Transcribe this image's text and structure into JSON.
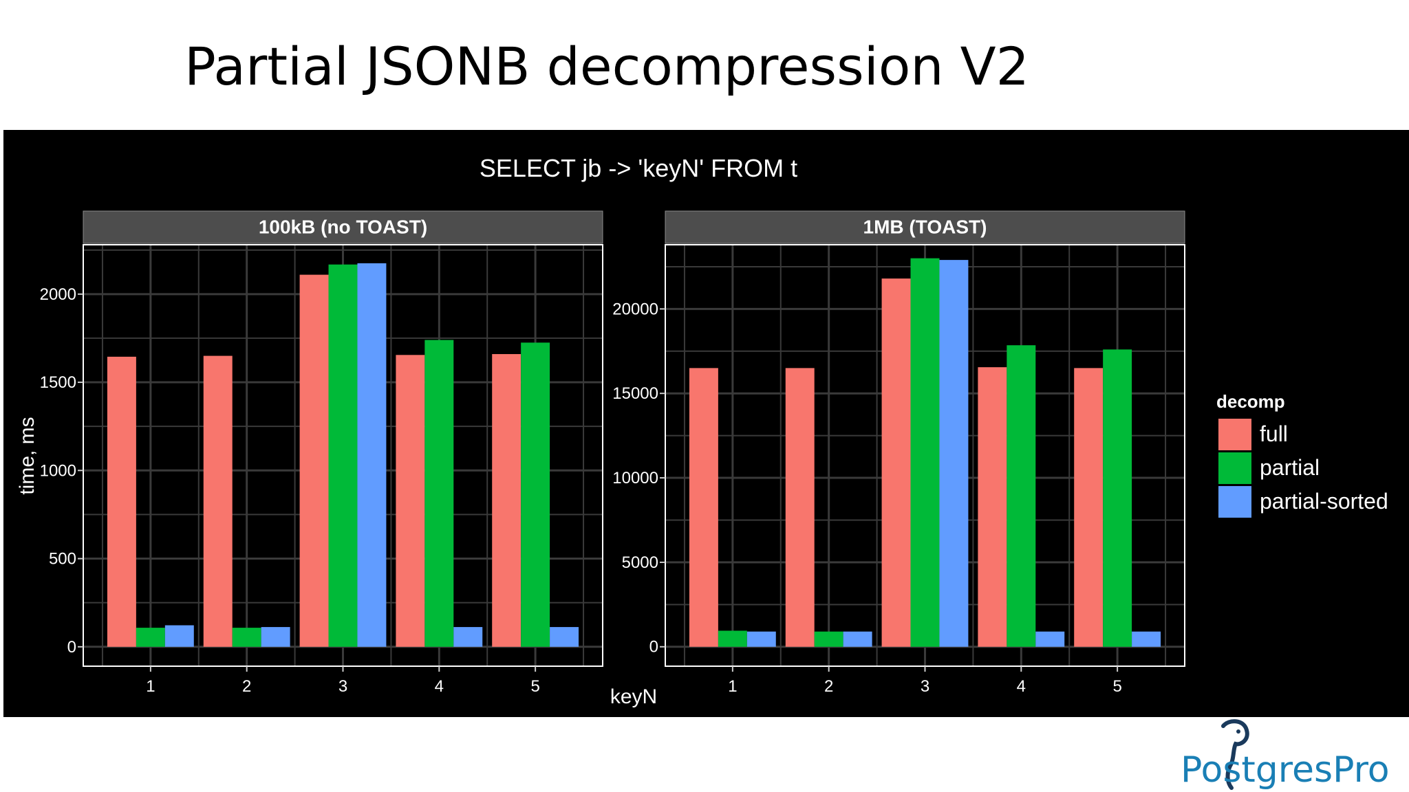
{
  "slide": {
    "title": "Partial JSONB decompression V2"
  },
  "logo": {
    "text": "PostgresPro"
  },
  "colors": {
    "full": "#F8766D",
    "partial": "#00BA38",
    "partial-sorted": "#619CFF",
    "strip": "#4d4d4d",
    "grid": "#3a3a3a"
  },
  "chart_data": {
    "type": "bar",
    "title": "SELECT jb -> 'keyN' FROM t",
    "xlabel": "keyN",
    "ylabel": "time, ms",
    "grid": true,
    "legend": {
      "title": "decomp",
      "position": "right",
      "entries": [
        "full",
        "partial",
        "partial-sorted"
      ]
    },
    "categories": [
      "1",
      "2",
      "3",
      "4",
      "5"
    ],
    "panels": [
      {
        "title": "100kB (no TOAST)",
        "ylim": [
          -110,
          2280
        ],
        "yticks": [
          0,
          500,
          1000,
          1500,
          2000
        ],
        "series": [
          {
            "name": "full",
            "values": [
              1645,
              1650,
              2110,
              1655,
              1660
            ]
          },
          {
            "name": "partial",
            "values": [
              108,
              108,
              2168,
              1740,
              1725
            ]
          },
          {
            "name": "partial-sorted",
            "values": [
              122,
              112,
              2175,
              112,
              112
            ]
          }
        ]
      },
      {
        "title": "1MB (TOAST)",
        "ylim": [
          -1150,
          23800
        ],
        "yticks": [
          0,
          5000,
          10000,
          15000,
          20000
        ],
        "series": [
          {
            "name": "full",
            "values": [
              16500,
              16500,
              21800,
              16550,
              16500
            ]
          },
          {
            "name": "partial",
            "values": [
              950,
              900,
              23000,
              17850,
              17600
            ]
          },
          {
            "name": "partial-sorted",
            "values": [
              900,
              900,
              22900,
              900,
              900
            ]
          }
        ]
      }
    ]
  }
}
